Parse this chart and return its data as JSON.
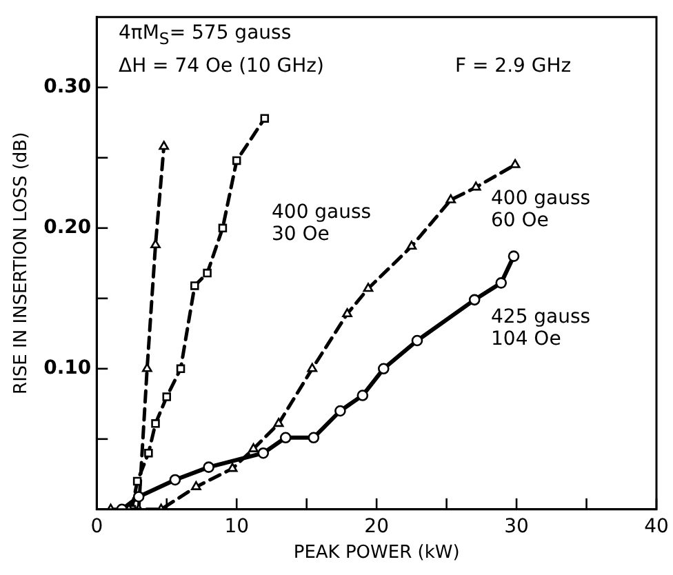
{
  "chart_data": {
    "type": "line",
    "xlabel": "PEAK POWER (kW)",
    "ylabel": "RISE IN INSERTION LOSS (dB)",
    "xlim": [
      0,
      40
    ],
    "ylim": [
      0,
      0.35
    ],
    "xticks": [
      0,
      {
        "value": 5,
        "label": null
      },
      10,
      {
        "value": 15,
        "label": null
      },
      20,
      {
        "value": 25,
        "label": null
      },
      30,
      {
        "value": 35,
        "label": null
      },
      40
    ],
    "yticks": [
      {
        "value": 0.05,
        "label": null
      },
      {
        "value": 0.1,
        "label": "0.10"
      },
      {
        "value": 0.15,
        "label": null
      },
      {
        "value": 0.2,
        "label": "0.20"
      },
      {
        "value": 0.25,
        "label": null
      },
      {
        "value": 0.3,
        "label": "0.30"
      }
    ],
    "grid": false,
    "legend": false,
    "series": [
      {
        "color": "#000000",
        "marker": "triangle",
        "line_style": "dashed",
        "x": [
          3.0,
          3.6,
          4.2,
          4.8
        ],
        "values": [
          0.0,
          0.1,
          0.188,
          0.258
        ]
      },
      {
        "color": "#000000",
        "marker": "square",
        "line_style": "dashed",
        "x": [
          2.5,
          2.9,
          3.7,
          4.2,
          5.0,
          6.0,
          7.0,
          7.9,
          9.0,
          10.0,
          12.0
        ],
        "values": [
          0.0,
          0.02,
          0.04,
          0.061,
          0.08,
          0.1,
          0.159,
          0.168,
          0.2,
          0.248,
          0.278
        ]
      },
      {
        "color": "#000000",
        "marker": "triangle",
        "line_style": "dashed",
        "x": [
          1.0,
          2.3,
          4.6,
          7.1,
          9.7,
          11.2,
          13.0,
          15.4,
          17.9,
          19.4,
          22.5,
          25.3,
          27.1,
          29.9
        ],
        "values": [
          0.0,
          0.0,
          0.0,
          0.016,
          0.029,
          0.043,
          0.061,
          0.1,
          0.139,
          0.157,
          0.187,
          0.22,
          0.229,
          0.245
        ]
      },
      {
        "color": "#000000",
        "marker": "circle",
        "line_style": "solid",
        "x": [
          1.8,
          3.0,
          5.6,
          8.0,
          11.9,
          13.5,
          15.5,
          17.4,
          19.0,
          20.5,
          22.9,
          27.0,
          28.9,
          29.8
        ],
        "values": [
          0.0,
          0.009,
          0.021,
          0.03,
          0.04,
          0.051,
          0.051,
          0.07,
          0.081,
          0.1,
          0.12,
          0.149,
          0.161,
          0.18
        ]
      }
    ],
    "annotations": [
      "4πM$_{S}$= 575 gauss",
      "ΔH = 74 Oe (10 GHz)",
      "F = 2.9 GHz",
      "400 gauss\n30 Oe",
      "400 gauss\n60 Oe",
      "425 gauss\n104 Oe"
    ]
  }
}
